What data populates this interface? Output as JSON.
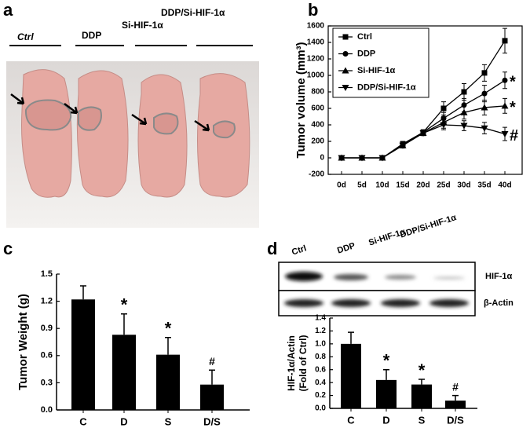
{
  "panel_labels": [
    "a",
    "b",
    "c",
    "d"
  ],
  "photo": {
    "labels": [
      "Ctrl",
      "DDP",
      "Si-HIF-1α",
      "DDP/Si-HIF-1α"
    ]
  },
  "blot": {
    "lanes": [
      "Ctrl",
      "DDP",
      "Si-HIF-1α",
      "DDP/Si-HIF-1α"
    ],
    "bands": [
      "HIF-1α",
      "β-Actin"
    ]
  },
  "chart_data": [
    {
      "type": "line",
      "ylabel": "Tumor volume (mm³)",
      "categories": [
        "0d",
        "5d",
        "10d",
        "15d",
        "20d",
        "25d",
        "30d",
        "35d",
        "40d"
      ],
      "ylim": [
        -200,
        1600
      ],
      "yticks": [
        -200,
        0,
        200,
        400,
        600,
        800,
        1000,
        1200,
        1400,
        1600
      ],
      "legend": "top-left",
      "color": "#000000",
      "series": [
        {
          "name": "Ctrl",
          "marker": "square",
          "values": [
            0,
            0,
            0,
            170,
            310,
            600,
            800,
            1030,
            1420
          ],
          "errors": [
            0,
            0,
            0,
            30,
            30,
            80,
            100,
            100,
            150
          ]
        },
        {
          "name": "DDP",
          "marker": "circle",
          "values": [
            0,
            0,
            0,
            160,
            310,
            480,
            640,
            780,
            940
          ],
          "errors": [
            0,
            0,
            0,
            30,
            30,
            70,
            80,
            100,
            100
          ],
          "annotation": "*"
        },
        {
          "name": "Si-HIF-1α",
          "marker": "triangle-up",
          "values": [
            0,
            0,
            0,
            150,
            300,
            430,
            550,
            610,
            630
          ],
          "errors": [
            0,
            0,
            0,
            30,
            30,
            70,
            80,
            90,
            90
          ],
          "annotation": "*"
        },
        {
          "name": "DDP/Si-HIF-1α",
          "marker": "triangle-down",
          "values": [
            0,
            0,
            0,
            150,
            300,
            400,
            390,
            360,
            290
          ],
          "errors": [
            0,
            0,
            0,
            30,
            30,
            60,
            60,
            70,
            80
          ],
          "annotation": "#"
        }
      ]
    },
    {
      "type": "bar",
      "ylabel": "Tumor Weight (g)",
      "categories": [
        "C",
        "D",
        "S",
        "D/S"
      ],
      "values": [
        1.22,
        0.83,
        0.61,
        0.28
      ],
      "errors": [
        0.15,
        0.23,
        0.19,
        0.16
      ],
      "annotations": [
        null,
        "*",
        "*",
        "#"
      ],
      "ylim": [
        0,
        1.5
      ],
      "yticks": [
        {
          "value": 0,
          "label": "0.0"
        },
        0.3,
        0.6,
        0.9,
        1.2,
        1.5
      ],
      "color": "#000000"
    },
    {
      "type": "bar",
      "ylabel": [
        "HIF-1α/Actin",
        "(Fold of Ctrl)"
      ],
      "categories": [
        "C",
        "D",
        "S",
        "D/S"
      ],
      "values": [
        1.0,
        0.44,
        0.37,
        0.12
      ],
      "errors": [
        0.18,
        0.16,
        0.08,
        0.08
      ],
      "annotations": [
        null,
        "*",
        "*",
        "#"
      ],
      "ylim": [
        0,
        1.4
      ],
      "yticks": [
        {
          "value": 0,
          "label": "0.0"
        },
        0.2,
        0.4,
        0.6,
        0.8,
        {
          "value": 1,
          "label": "1.0"
        },
        1.2,
        1.4
      ],
      "color": "#000000"
    }
  ]
}
